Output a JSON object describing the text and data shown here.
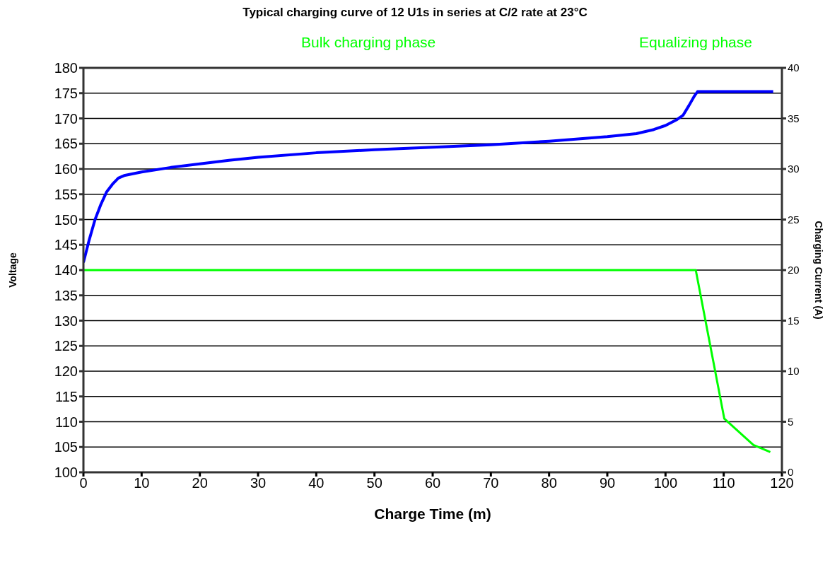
{
  "chart_data": {
    "type": "line",
    "title": "Typical charging curve of 12 U1s in series at C/2 rate at 23°C",
    "xlabel": "Charge Time (m)",
    "ylabel": "Voltage",
    "y2label": "Charging Current (A)",
    "annotations": [
      "Bulk charging phase",
      "Equalizing phase"
    ],
    "series": [
      {
        "color": "#0000ff",
        "x": [
          0,
          1,
          2,
          3,
          4,
          5,
          6,
          7,
          10,
          15,
          20,
          25,
          30,
          40,
          50,
          60,
          70,
          80,
          90,
          95,
          98,
          100,
          102,
          103,
          104,
          105,
          105.5,
          118.5
        ],
        "values": [
          141.5,
          146,
          150,
          153,
          155.5,
          157,
          158.2,
          158.7,
          159.4,
          160.3,
          161,
          161.7,
          162.3,
          163.2,
          163.8,
          164.3,
          164.8,
          165.5,
          166.4,
          167,
          167.8,
          168.6,
          169.8,
          170.6,
          172.5,
          174.5,
          175.3,
          175.3
        ]
      },
      {
        "color": "#00ff00",
        "axis": "y2",
        "x": [
          0,
          105.2,
          110.1,
          115.1,
          118
        ],
        "values": [
          20,
          20,
          5.3,
          2.7,
          2
        ]
      }
    ],
    "xlim": [
      0,
      120
    ],
    "xticks": [
      0,
      10,
      20,
      30,
      40,
      50,
      60,
      70,
      80,
      90,
      100,
      110,
      120
    ],
    "ylim": [
      100,
      180
    ],
    "yticks": [
      100,
      105,
      110,
      115,
      120,
      125,
      130,
      135,
      140,
      145,
      150,
      155,
      160,
      165,
      170,
      175,
      180
    ],
    "y2lim": [
      0,
      40
    ],
    "y2ticks": [
      0,
      5,
      10,
      15,
      20,
      25,
      30,
      35,
      40
    ],
    "grid": "y",
    "marker": "none",
    "line_style": "solid"
  }
}
